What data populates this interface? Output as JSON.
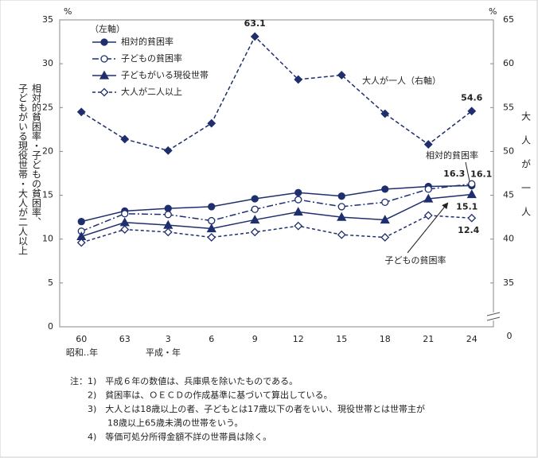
{
  "chart_data": {
    "type": "line",
    "categories": [
      "60",
      "63",
      "3",
      "6",
      "9",
      "12",
      "15",
      "18",
      "21",
      "24"
    ],
    "era_labels": [
      "昭和‥年",
      "平成・年"
    ],
    "series": [
      {
        "name": "相対的貧困率",
        "color": "#1f2f6e",
        "marker": "circle",
        "filled": true,
        "dash": "none",
        "values": [
          12.0,
          13.2,
          13.5,
          13.7,
          14.6,
          15.3,
          14.9,
          15.7,
          16.0,
          16.1
        ],
        "value_labels": [
          null,
          null,
          null,
          null,
          null,
          null,
          null,
          null,
          null,
          "16.1"
        ]
      },
      {
        "name": "子どもの貧困率",
        "color": "#1f2f6e",
        "marker": "circle",
        "filled": false,
        "dash": "8 3 2 3",
        "values": [
          10.9,
          12.9,
          12.8,
          12.1,
          13.4,
          14.5,
          13.7,
          14.2,
          15.7,
          16.3
        ],
        "value_labels": [
          null,
          null,
          null,
          null,
          null,
          null,
          null,
          null,
          null,
          "16.3"
        ]
      },
      {
        "name": "子どもがいる現役世帯",
        "color": "#1f2f6e",
        "marker": "triangle",
        "filled": true,
        "dash": "none",
        "values": [
          10.3,
          11.9,
          11.6,
          11.2,
          12.2,
          13.1,
          12.5,
          12.2,
          14.6,
          15.1
        ],
        "value_labels": [
          null,
          null,
          null,
          null,
          null,
          null,
          null,
          null,
          null,
          "15.1"
        ]
      },
      {
        "name": "大人が二人以上",
        "color": "#1f2f6e",
        "marker": "diamond",
        "filled": false,
        "dash": "4 3",
        "values": [
          9.6,
          11.1,
          10.8,
          10.2,
          10.8,
          11.5,
          10.5,
          10.2,
          12.7,
          12.4
        ],
        "value_labels": [
          null,
          null,
          null,
          null,
          null,
          null,
          null,
          null,
          null,
          "12.4"
        ]
      },
      {
        "name": "大人が一人（右軸）",
        "color": "#1f2f6e",
        "marker": "diamond",
        "filled": true,
        "dash": "5 3",
        "axis": "y2",
        "values": [
          54.5,
          51.4,
          50.1,
          53.2,
          63.1,
          58.2,
          58.7,
          54.3,
          50.8,
          54.6
        ],
        "value_labels": [
          null,
          null,
          null,
          null,
          "63.1",
          null,
          null,
          null,
          null,
          "54.6"
        ]
      }
    ],
    "legend_title": "（左軸）",
    "ylim": [
      0,
      35
    ],
    "yticks": [
      0,
      5,
      10,
      15,
      20,
      25,
      30,
      35
    ],
    "y2lim": [
      30,
      65
    ],
    "y2ticks": [
      35,
      40,
      45,
      50,
      55,
      60,
      65
    ],
    "y2_break_label": "0",
    "y_unit": "%",
    "y2_unit": "%",
    "ylabel_lines": [
      "相対的貧困率・子どもの貧困率、",
      "子どもがいる現役世帯・大人が二人以上"
    ],
    "y2label": "大人が一人",
    "annotations": [
      "相対的貧困率",
      "子どもの貧困率"
    ],
    "notes": [
      "注：1)　平成６年の数値は、兵庫県を除いたものである。",
      "2)　貧困率は、ＯＥＣＤの作成基準に基づいて算出している。",
      "3)　大人とは18歳以上の者、子どもとは17歳以下の者をいい、現役世帯とは世帯主が",
      "18歳以上65歳未満の世帯をいう。",
      "4)　等価可処分所得金額不詳の世帯員は除く。"
    ]
  }
}
